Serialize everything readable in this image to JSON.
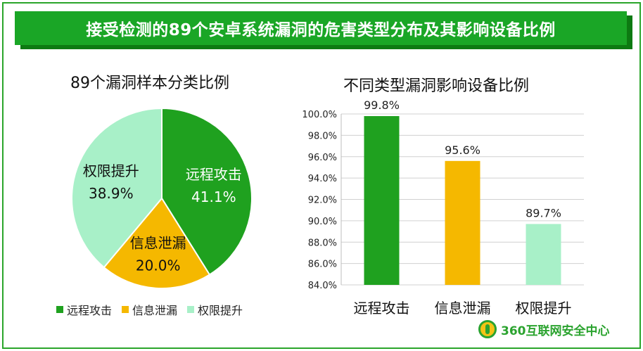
{
  "banner": {
    "title": "接受检测的89个安卓系统漏洞的危害类型分布及其影响设备比例"
  },
  "brand": {
    "name": "360互联网安全中心"
  },
  "chart_data": [
    {
      "type": "pie",
      "title": "89个漏洞样本分类比例",
      "labels": [
        "远程攻击",
        "信息泄漏",
        "权限提升"
      ],
      "values": [
        41.1,
        20.0,
        38.9
      ],
      "value_labels": [
        "41.1%",
        "20.0%",
        "38.9%"
      ],
      "colors": [
        "#1fa11f",
        "#f5b800",
        "#a8f0c8"
      ],
      "legend": "bottom"
    },
    {
      "type": "bar",
      "title": "不同类型漏洞影响设备比例",
      "categories": [
        "远程攻击",
        "信息泄漏",
        "权限提升"
      ],
      "values": [
        99.8,
        95.6,
        89.7
      ],
      "value_labels": [
        "99.8%",
        "95.6%",
        "89.7%"
      ],
      "colors": [
        "#1fa11f",
        "#f5b800",
        "#a8f0c8"
      ],
      "ylim": [
        84.0,
        100.0
      ],
      "yticks": [
        "84.0%",
        "86.0%",
        "88.0%",
        "90.0%",
        "92.0%",
        "94.0%",
        "96.0%",
        "98.0%",
        "100.0%"
      ],
      "grid": true
    }
  ]
}
